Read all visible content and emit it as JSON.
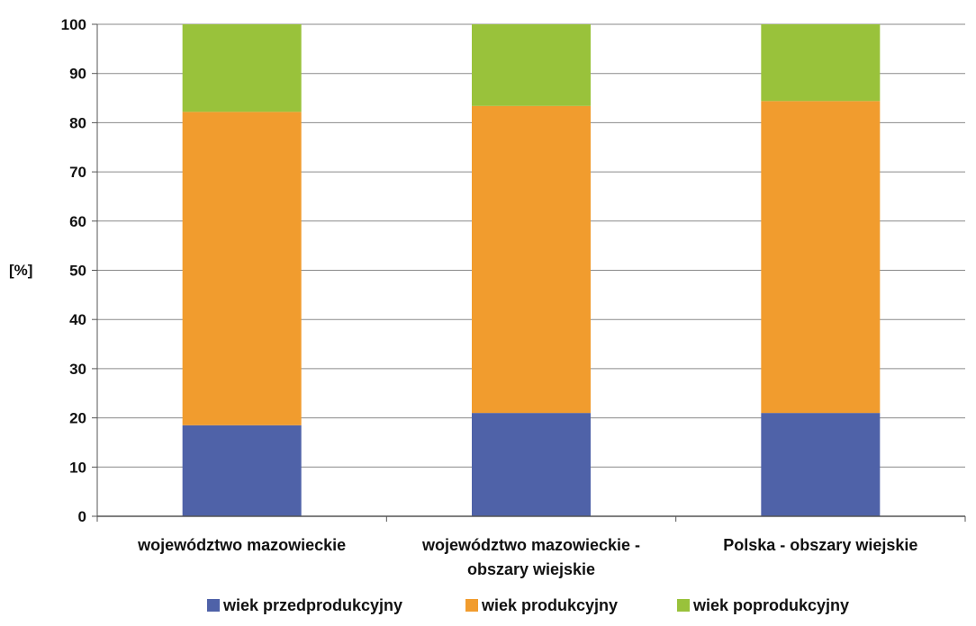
{
  "chart_data": {
    "type": "bar",
    "stacked": true,
    "ylabel": "[%]",
    "xlabel": "",
    "ylim": [
      0,
      100
    ],
    "yticks": [
      0,
      10,
      20,
      30,
      40,
      50,
      60,
      70,
      80,
      90,
      100
    ],
    "grid": true,
    "legend_position": "bottom",
    "categories": [
      [
        "województwo mazowieckie"
      ],
      [
        "województwo mazowieckie -",
        "obszary wiejskie"
      ],
      [
        "Polska - obszary wiejskie"
      ]
    ],
    "series": [
      {
        "name": "wiek przedprodukcyjny",
        "color": "#4f62a8",
        "values": [
          18.5,
          21,
          21
        ]
      },
      {
        "name": "wiek produkcyjny",
        "color": "#f19c2e",
        "values": [
          63.7,
          62.4,
          63.4
        ]
      },
      {
        "name": "wiek poprodukcyjny",
        "color": "#99c23b",
        "values": [
          17.8,
          16.6,
          15.6
        ]
      }
    ]
  }
}
